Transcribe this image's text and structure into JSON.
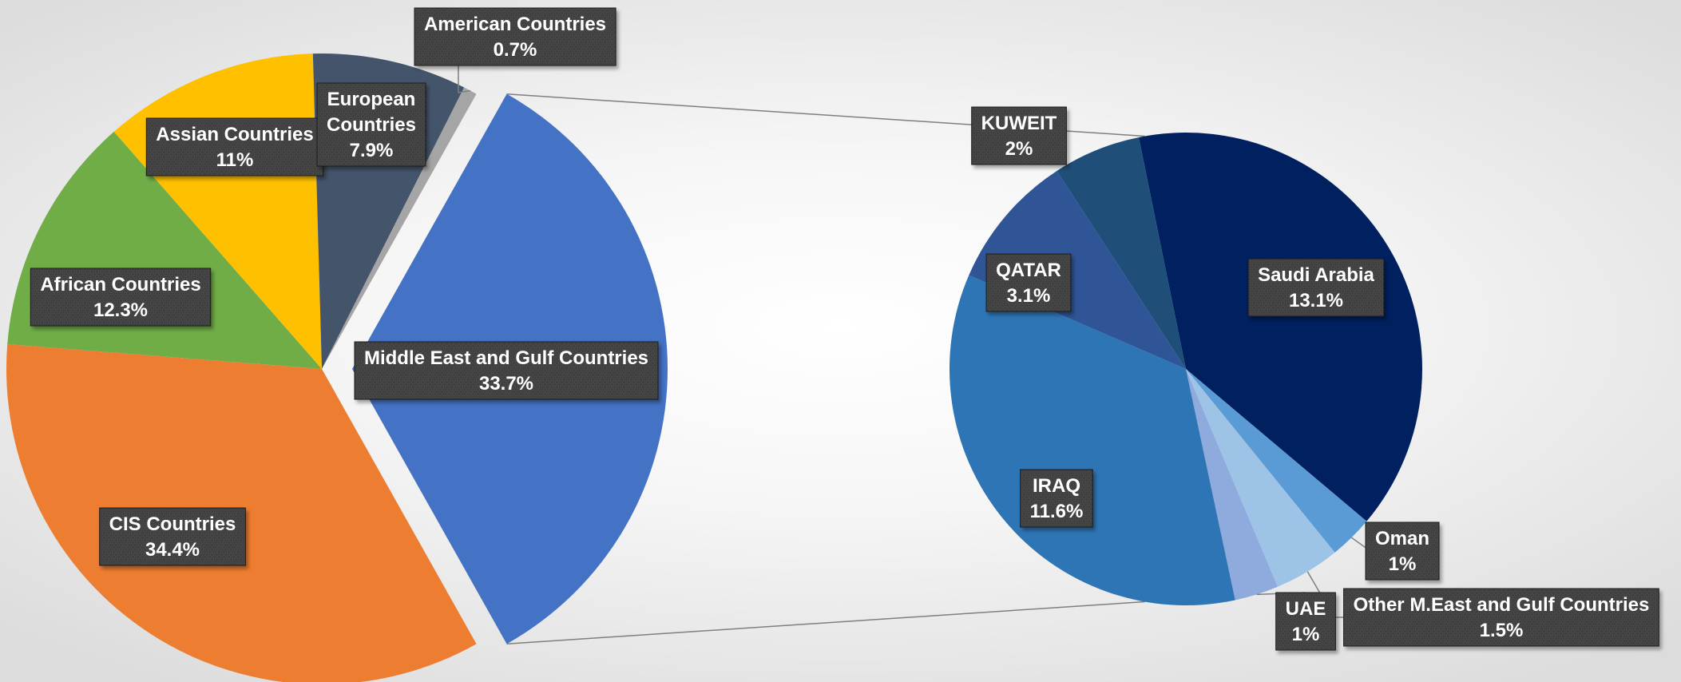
{
  "chart_data": [
    {
      "type": "pie",
      "title": "",
      "slices": [
        {
          "label": "Middle East and Gulf Countries",
          "pct_label": "33.7%",
          "value": 33.7,
          "color": "#4472C4"
        },
        {
          "label": "CIS Countries",
          "pct_label": "34.4%",
          "value": 34.4,
          "color": "#ED7D31"
        },
        {
          "label": "African Countries",
          "pct_label": "12.3%",
          "value": 12.3,
          "color": "#70AD47"
        },
        {
          "label": "Assian Countries",
          "pct_label": "11%",
          "value": 11.0,
          "color": "#FFC000"
        },
        {
          "label": "European Countries",
          "pct_label": "7.9%",
          "value": 7.9,
          "color": "#44546A"
        },
        {
          "label": "American Countries",
          "pct_label": "0.7%",
          "value": 0.7,
          "color": "#A5A5A5"
        }
      ]
    },
    {
      "type": "pie",
      "title": "",
      "breakdown_of": "Middle East and Gulf Countries",
      "slices": [
        {
          "label": "Saudi Arabia",
          "pct_label": "13.1%",
          "value": 13.1,
          "color": "#002060"
        },
        {
          "label": "Oman",
          "pct_label": "1%",
          "value": 1.0,
          "color": "#5B9BD5"
        },
        {
          "label": "Other M.East and Gulf Countries",
          "pct_label": "1.5%",
          "value": 1.5,
          "color": "#9DC3E6"
        },
        {
          "label": "UAE",
          "pct_label": "1%",
          "value": 1.0,
          "color": "#8FAADC"
        },
        {
          "label": "IRAQ",
          "pct_label": "11.6%",
          "value": 11.6,
          "color": "#2E75B6"
        },
        {
          "label": "QATAR",
          "pct_label": "3.1%",
          "value": 3.1,
          "color": "#2F5597"
        },
        {
          "label": "KUWEIT",
          "pct_label": "2%",
          "value": 2.0,
          "color": "#1F4E79"
        }
      ]
    }
  ]
}
